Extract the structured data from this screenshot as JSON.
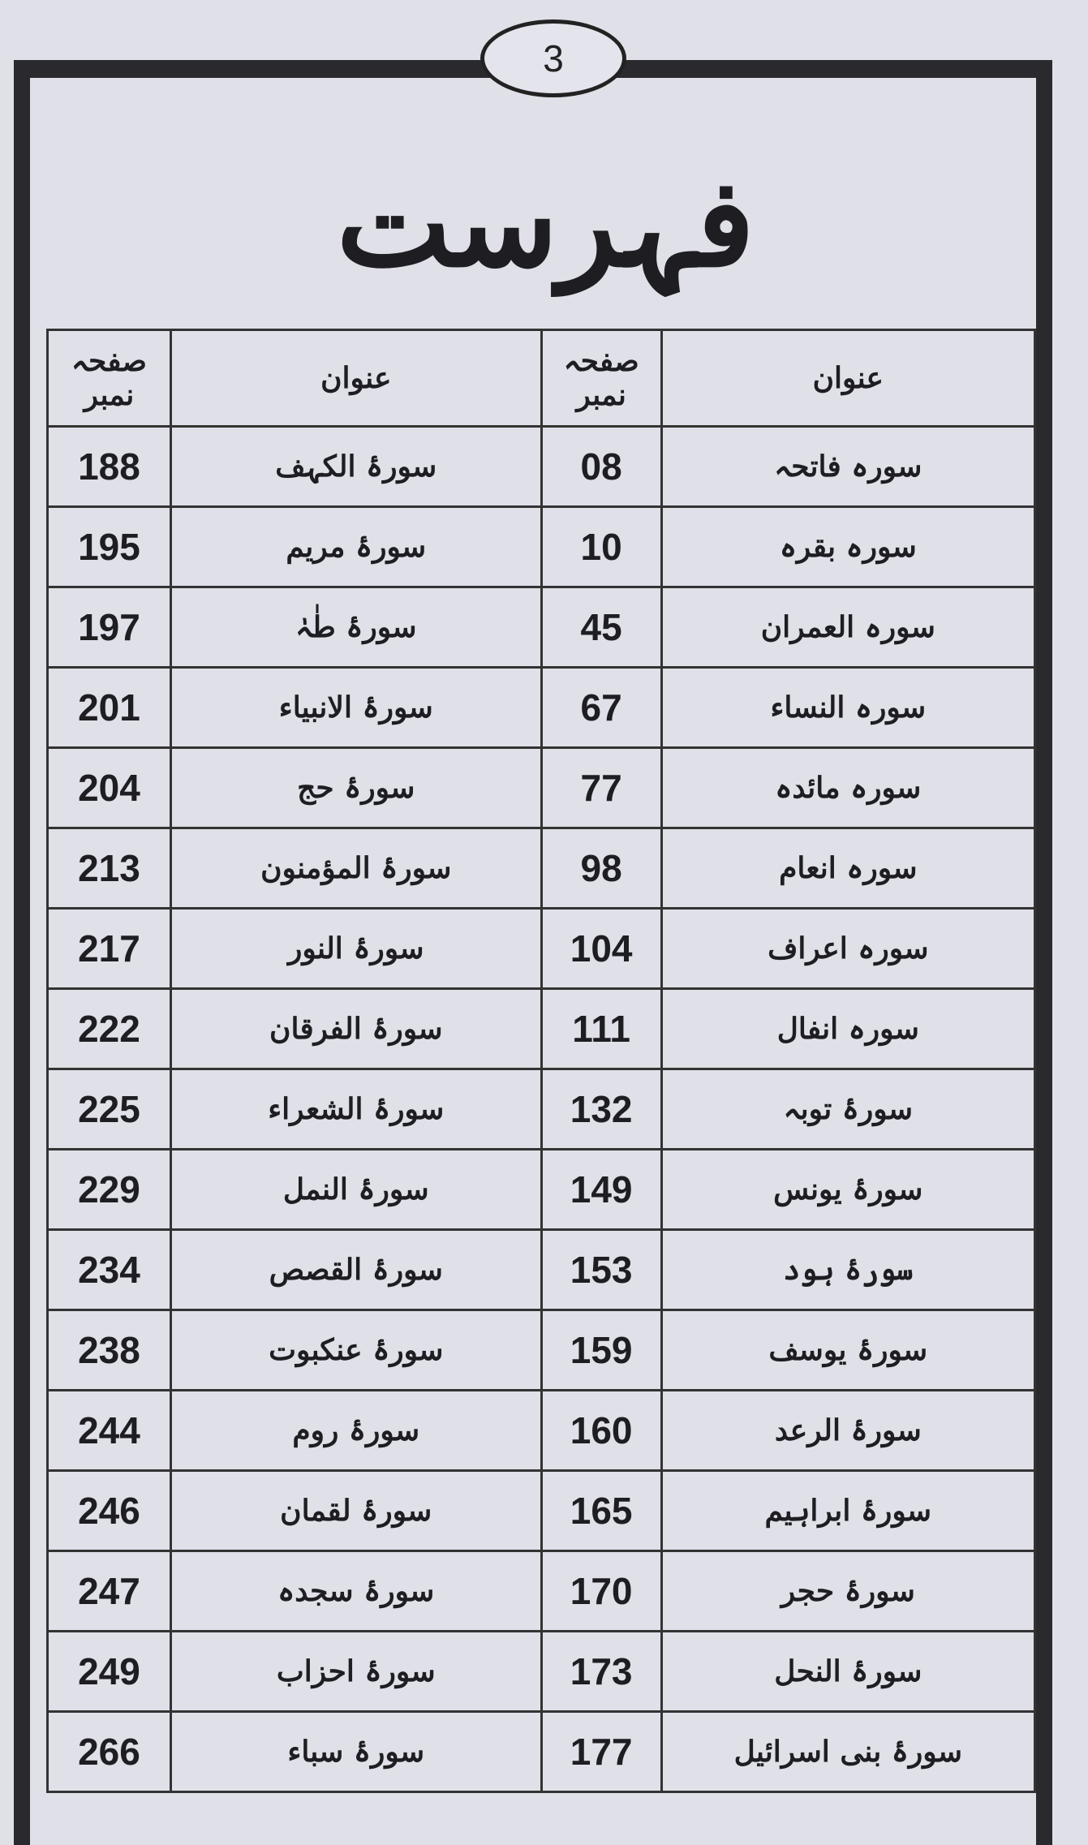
{
  "page_number": "3",
  "title": "فہرست",
  "headers": {
    "title": "عنوان",
    "page": "صفحہ نمبر"
  },
  "right_column": [
    {
      "title": "سورہ فاتحہ",
      "page": "08"
    },
    {
      "title": "سورہ بقرہ",
      "page": "10"
    },
    {
      "title": "سورہ العمران",
      "page": "45"
    },
    {
      "title": "سورہ النساء",
      "page": "67"
    },
    {
      "title": "سورہ مائدہ",
      "page": "77"
    },
    {
      "title": "سورہ انعام",
      "page": "98"
    },
    {
      "title": "سورہ اعراف",
      "page": "104"
    },
    {
      "title": "سورہ انفال",
      "page": "111"
    },
    {
      "title": "سورۂ توبہ",
      "page": "132"
    },
    {
      "title": "سورۂ یونس",
      "page": "149"
    },
    {
      "title": "سورۂ ہود",
      "page": "153"
    },
    {
      "title": "سورۂ یوسف",
      "page": "159"
    },
    {
      "title": "سورۂ الرعد",
      "page": "160"
    },
    {
      "title": "سورۂ ابراہیم",
      "page": "165"
    },
    {
      "title": "سورۂ حجر",
      "page": "170"
    },
    {
      "title": "سورۂ النحل",
      "page": "173"
    },
    {
      "title": "سورۂ بنی اسرائیل",
      "page": "177"
    }
  ],
  "left_column": [
    {
      "title": "سورۂ الکہف",
      "page": "188"
    },
    {
      "title": "سورۂ مریم",
      "page": "195"
    },
    {
      "title": "سورۂ طٰہٰ",
      "page": "197"
    },
    {
      "title": "سورۂ الانبیاء",
      "page": "201"
    },
    {
      "title": "سورۂ حج",
      "page": "204"
    },
    {
      "title": "سورۂ المؤمنون",
      "page": "213"
    },
    {
      "title": "سورۂ النور",
      "page": "217"
    },
    {
      "title": "سورۂ الفرقان",
      "page": "222"
    },
    {
      "title": "سورۂ الشعراء",
      "page": "225"
    },
    {
      "title": "سورۂ النمل",
      "page": "229"
    },
    {
      "title": "سورۂ القصص",
      "page": "234"
    },
    {
      "title": "سورۂ عنکبوت",
      "page": "238"
    },
    {
      "title": "سورۂ روم",
      "page": "244"
    },
    {
      "title": "سورۂ لقمان",
      "page": "246"
    },
    {
      "title": "سورۂ سجدہ",
      "page": "247"
    },
    {
      "title": "سورۂ احزاب",
      "page": "249"
    },
    {
      "title": "سورۂ سباء",
      "page": "266"
    }
  ]
}
